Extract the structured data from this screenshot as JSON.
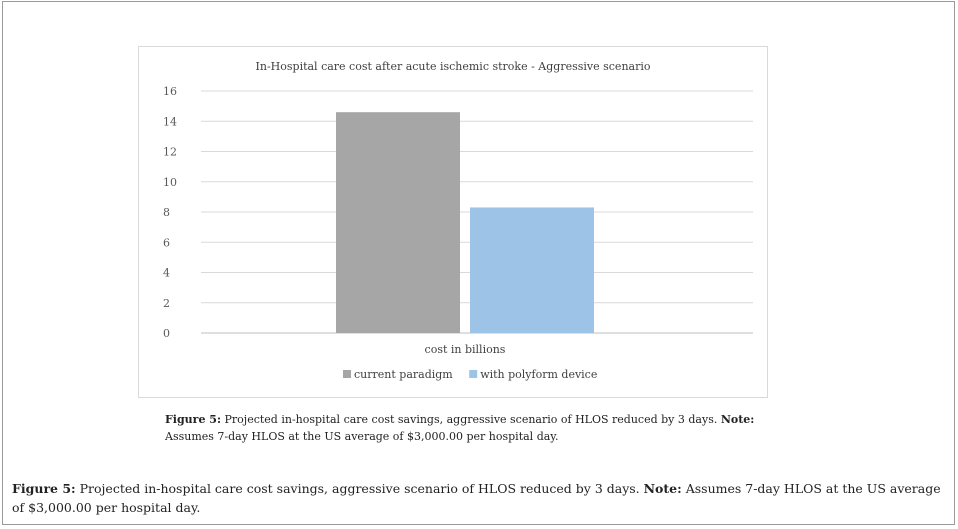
{
  "chart_data": {
    "type": "bar",
    "title": "In-Hospital care cost after acute ischemic stroke - Aggressive scenario",
    "categories": [
      "cost in billions"
    ],
    "series": [
      {
        "name": "current paradigm",
        "values": [
          14.6
        ],
        "color": "#a6a6a6"
      },
      {
        "name": "with polyform device",
        "values": [
          8.3
        ],
        "color": "#9dc3e6"
      }
    ],
    "ylim": [
      0,
      16
    ],
    "yticks": [
      "0",
      "2",
      "4",
      "6",
      "8",
      "10",
      "12",
      "14",
      "16"
    ],
    "grid": true,
    "legend": "bottom"
  },
  "inner_caption": {
    "label": "Figure 5:",
    "text": " Projected in-hospital care cost savings, aggressive scenario of HLOS reduced by 3 days. ",
    "note_label": "Note:",
    "note_text": " Assumes 7-day HLOS at the US average of $3,000.00 per hospital day."
  },
  "outer_caption": {
    "label": "Figure 5:",
    "text": " Projected in-hospital care cost savings, aggressive scenario of HLOS reduced by 3 days. ",
    "note_label": "Note:",
    "note_text": " Assumes 7-day HLOS at the US average of $3,000.00 per hospital day."
  }
}
